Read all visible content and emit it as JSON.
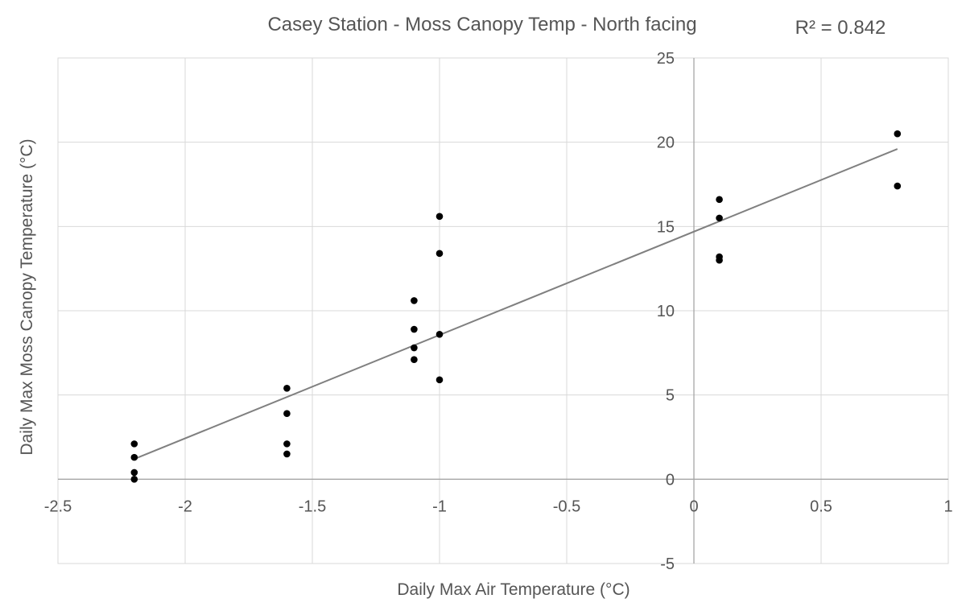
{
  "chart_data": {
    "type": "scatter",
    "title": "Casey Station - Moss Canopy Temp - North facing",
    "r2_label": "R² = 0.842",
    "xlabel": "Daily Max Air Temperature (°C)",
    "ylabel": "Daily Max Moss Canopy Temperature (°C)",
    "xlim": [
      -2.5,
      1
    ],
    "ylim": [
      -5,
      25
    ],
    "x_ticks": [
      -2.5,
      -2,
      -1.5,
      -1,
      -0.5,
      0,
      0.5,
      1
    ],
    "x_tick_labels": [
      "-2.5",
      "-2",
      "-1.5",
      "-1",
      "-0.5",
      "0",
      "0.5",
      "1"
    ],
    "y_ticks": [
      -5,
      0,
      5,
      10,
      15,
      20,
      25
    ],
    "y_tick_labels": [
      "-5",
      "0",
      "5",
      "10",
      "15",
      "20",
      "25"
    ],
    "grid": true,
    "series": [
      {
        "color": "#000000",
        "points": [
          [
            -2.2,
            2.1
          ],
          [
            -2.2,
            1.3
          ],
          [
            -2.2,
            0.4
          ],
          [
            -2.2,
            0.0
          ],
          [
            -1.6,
            5.4
          ],
          [
            -1.6,
            3.9
          ],
          [
            -1.6,
            2.1
          ],
          [
            -1.6,
            1.5
          ],
          [
            -1.1,
            10.6
          ],
          [
            -1.1,
            8.9
          ],
          [
            -1.1,
            7.8
          ],
          [
            -1.1,
            7.1
          ],
          [
            -1.0,
            15.6
          ],
          [
            -1.0,
            13.4
          ],
          [
            -1.0,
            8.6
          ],
          [
            -1.0,
            5.9
          ],
          [
            0.1,
            16.6
          ],
          [
            0.1,
            15.5
          ],
          [
            0.1,
            13.2
          ],
          [
            0.1,
            13.0
          ],
          [
            0.8,
            20.5
          ],
          [
            0.8,
            17.4
          ]
        ]
      }
    ],
    "trendline": {
      "color": "#808080",
      "x": [
        -2.2,
        0.8
      ],
      "y": [
        1.2,
        19.6
      ]
    }
  }
}
